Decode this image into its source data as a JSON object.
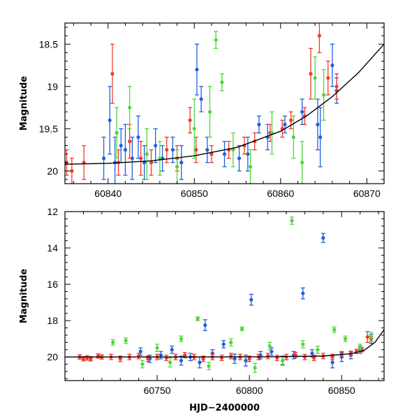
{
  "colors": {
    "blue": "#1f5fe0",
    "red": "#ef3a2b",
    "green": "#4fd63a",
    "fit": "#000000"
  },
  "chart_data": [
    {
      "type": "scatter",
      "title": "",
      "xlabel": "",
      "ylabel": "Magnitude",
      "xlim": [
        60835,
        60872
      ],
      "ylim": [
        20.15,
        18.25
      ],
      "y_inverted": true,
      "xticks": [
        60840,
        60850,
        60860,
        60870
      ],
      "xtick_labels": [
        "60840",
        "60850",
        "60860",
        "60870"
      ],
      "yticks": [
        18.5,
        19,
        19.5,
        20
      ],
      "ytick_labels": [
        "18.5",
        "19",
        "19.5",
        "20"
      ],
      "grid": false,
      "legend": false,
      "fit_curve": {
        "x": [
          60835,
          60840,
          60845,
          60850,
          60855,
          60860,
          60863,
          60866,
          60869,
          60872
        ],
        "y": [
          19.92,
          19.91,
          19.88,
          19.82,
          19.72,
          19.53,
          19.35,
          19.12,
          18.84,
          18.5
        ]
      },
      "series": [
        {
          "color": "blue",
          "points": [
            {
              "x": 60839.5,
              "y": 19.85,
              "err": 0.25
            },
            {
              "x": 60840.2,
              "y": 19.4,
              "err": 0.4
            },
            {
              "x": 60840.8,
              "y": 19.9,
              "err": 0.3
            },
            {
              "x": 60841.5,
              "y": 19.7,
              "err": 0.2
            },
            {
              "x": 60842.0,
              "y": 19.75,
              "err": 0.3
            },
            {
              "x": 60842.8,
              "y": 19.85,
              "err": 0.25
            },
            {
              "x": 60843.5,
              "y": 19.6,
              "err": 0.25
            },
            {
              "x": 60844.2,
              "y": 19.9,
              "err": 0.2
            },
            {
              "x": 60845.5,
              "y": 19.7,
              "err": 0.2
            },
            {
              "x": 60846.3,
              "y": 19.85,
              "err": 0.15
            },
            {
              "x": 60847.5,
              "y": 19.75,
              "err": 0.15
            },
            {
              "x": 60848.5,
              "y": 19.9,
              "err": 0.2
            },
            {
              "x": 60850.3,
              "y": 18.8,
              "err": 0.3
            },
            {
              "x": 60850.8,
              "y": 19.15,
              "err": 0.15
            },
            {
              "x": 60851.5,
              "y": 19.75,
              "err": 0.15
            },
            {
              "x": 60853.5,
              "y": 19.8,
              "err": 0.15
            },
            {
              "x": 60855.2,
              "y": 19.85,
              "err": 0.15
            },
            {
              "x": 60856.2,
              "y": 19.8,
              "err": 0.2
            },
            {
              "x": 60857.5,
              "y": 19.45,
              "err": 0.1
            },
            {
              "x": 60858.5,
              "y": 19.6,
              "err": 0.15
            },
            {
              "x": 60860.5,
              "y": 19.45,
              "err": 0.1
            },
            {
              "x": 60862.5,
              "y": 19.3,
              "err": 0.15
            },
            {
              "x": 60864.3,
              "y": 19.45,
              "err": 0.3
            },
            {
              "x": 60864.6,
              "y": 19.6,
              "err": 0.35
            },
            {
              "x": 60866.0,
              "y": 18.75,
              "err": 0.25
            },
            {
              "x": 60866.5,
              "y": 19.05,
              "err": 0.15
            }
          ]
        },
        {
          "color": "red",
          "points": [
            {
              "x": 60835.2,
              "y": 19.9,
              "err": 0.15
            },
            {
              "x": 60835.8,
              "y": 20.0,
              "err": 0.15
            },
            {
              "x": 60837.2,
              "y": 19.9,
              "err": 0.2
            },
            {
              "x": 60840.5,
              "y": 18.85,
              "err": 0.35
            },
            {
              "x": 60841.2,
              "y": 19.9,
              "err": 0.15
            },
            {
              "x": 60842.5,
              "y": 19.65,
              "err": 0.2
            },
            {
              "x": 60843.8,
              "y": 19.85,
              "err": 0.2
            },
            {
              "x": 60845.0,
              "y": 19.9,
              "err": 0.15
            },
            {
              "x": 60846.8,
              "y": 19.75,
              "err": 0.15
            },
            {
              "x": 60848.0,
              "y": 19.85,
              "err": 0.15
            },
            {
              "x": 60849.5,
              "y": 19.4,
              "err": 0.15
            },
            {
              "x": 60850.2,
              "y": 19.75,
              "err": 0.15
            },
            {
              "x": 60852.0,
              "y": 19.8,
              "err": 0.1
            },
            {
              "x": 60854.0,
              "y": 19.75,
              "err": 0.1
            },
            {
              "x": 60855.8,
              "y": 19.7,
              "err": 0.1
            },
            {
              "x": 60857.0,
              "y": 19.65,
              "err": 0.1
            },
            {
              "x": 60858.8,
              "y": 19.55,
              "err": 0.1
            },
            {
              "x": 60860.2,
              "y": 19.5,
              "err": 0.1
            },
            {
              "x": 60861.2,
              "y": 19.4,
              "err": 0.1
            },
            {
              "x": 60862.8,
              "y": 19.35,
              "err": 0.1
            },
            {
              "x": 60863.5,
              "y": 18.85,
              "err": 0.3
            },
            {
              "x": 60864.5,
              "y": 18.4,
              "err": 0.2
            },
            {
              "x": 60865.5,
              "y": 18.9,
              "err": 0.2
            },
            {
              "x": 60866.5,
              "y": 19.0,
              "err": 0.15
            }
          ]
        },
        {
          "color": "green",
          "points": [
            {
              "x": 60841.0,
              "y": 19.55,
              "err": 0.3
            },
            {
              "x": 60842.5,
              "y": 19.25,
              "err": 0.25
            },
            {
              "x": 60844.5,
              "y": 19.8,
              "err": 0.3
            },
            {
              "x": 60846.0,
              "y": 19.85,
              "err": 0.2
            },
            {
              "x": 60848.0,
              "y": 19.95,
              "err": 0.2
            },
            {
              "x": 60850.0,
              "y": 19.5,
              "err": 0.35
            },
            {
              "x": 60851.8,
              "y": 19.3,
              "err": 0.3
            },
            {
              "x": 60852.5,
              "y": 18.45,
              "err": 0.1
            },
            {
              "x": 60853.2,
              "y": 18.95,
              "err": 0.1
            },
            {
              "x": 60854.5,
              "y": 19.75,
              "err": 0.2
            },
            {
              "x": 60856.5,
              "y": 19.95,
              "err": 0.2
            },
            {
              "x": 60859.0,
              "y": 19.55,
              "err": 0.25
            },
            {
              "x": 60861.5,
              "y": 19.6,
              "err": 0.25
            },
            {
              "x": 60862.5,
              "y": 19.9,
              "err": 0.25
            },
            {
              "x": 60864.0,
              "y": 18.9,
              "err": 0.25
            },
            {
              "x": 60865.0,
              "y": 19.1,
              "err": 0.3
            }
          ]
        }
      ]
    },
    {
      "type": "scatter",
      "title": "",
      "xlabel": "HJD−2400000",
      "ylabel": "Magnitude",
      "xlim": [
        60700,
        60873
      ],
      "ylim": [
        21.3,
        12.0
      ],
      "y_inverted": true,
      "xticks": [
        60750,
        60800,
        60850
      ],
      "xtick_labels": [
        "60750",
        "60800",
        "60850"
      ],
      "yticks": [
        12,
        14,
        16,
        18,
        20
      ],
      "ytick_labels": [
        "12",
        "14",
        "16",
        "18",
        "20"
      ],
      "grid": false,
      "legend": false,
      "fit_curve": {
        "x": [
          60700,
          60760,
          60810,
          60840,
          60855,
          60862,
          60868,
          60873
        ],
        "y": [
          20.0,
          20.0,
          19.99,
          19.95,
          19.82,
          19.65,
          19.2,
          18.5
        ]
      },
      "series": [
        {
          "color": "blue",
          "points": [
            {
              "x": 60741,
              "y": 19.7,
              "err": 0.2
            },
            {
              "x": 60746,
              "y": 20.1,
              "err": 0.2
            },
            {
              "x": 60752,
              "y": 19.9,
              "err": 0.2
            },
            {
              "x": 60758,
              "y": 19.6,
              "err": 0.2
            },
            {
              "x": 60763,
              "y": 20.2,
              "err": 0.25
            },
            {
              "x": 60768,
              "y": 20.0,
              "err": 0.2
            },
            {
              "x": 60773,
              "y": 20.3,
              "err": 0.3
            },
            {
              "x": 60776,
              "y": 18.25,
              "err": 0.3
            },
            {
              "x": 60780,
              "y": 19.8,
              "err": 0.2
            },
            {
              "x": 60786,
              "y": 19.3,
              "err": 0.2
            },
            {
              "x": 60792,
              "y": 20.1,
              "err": 0.25
            },
            {
              "x": 60798,
              "y": 20.2,
              "err": 0.3
            },
            {
              "x": 60801,
              "y": 16.85,
              "err": 0.3
            },
            {
              "x": 60806,
              "y": 19.9,
              "err": 0.2
            },
            {
              "x": 60812,
              "y": 19.7,
              "err": 0.2
            },
            {
              "x": 60818,
              "y": 20.2,
              "err": 0.25
            },
            {
              "x": 60824,
              "y": 19.9,
              "err": 0.2
            },
            {
              "x": 60829,
              "y": 16.5,
              "err": 0.3
            },
            {
              "x": 60834,
              "y": 19.8,
              "err": 0.2
            },
            {
              "x": 60840,
              "y": 13.45,
              "err": 0.25
            },
            {
              "x": 60845,
              "y": 20.3,
              "err": 0.3
            },
            {
              "x": 60850,
              "y": 20.0,
              "err": 0.25
            },
            {
              "x": 60855,
              "y": 19.9,
              "err": 0.2
            },
            {
              "x": 60860,
              "y": 19.6,
              "err": 0.2
            },
            {
              "x": 60866,
              "y": 19.0,
              "err": 0.25
            }
          ]
        },
        {
          "color": "red",
          "points": [
            {
              "x": 60708,
              "y": 20.0,
              "err": 0.12
            },
            {
              "x": 60710,
              "y": 20.1,
              "err": 0.12
            },
            {
              "x": 60712,
              "y": 20.05,
              "err": 0.12
            },
            {
              "x": 60714,
              "y": 20.1,
              "err": 0.12
            },
            {
              "x": 60718,
              "y": 19.95,
              "err": 0.12
            },
            {
              "x": 60720,
              "y": 20.0,
              "err": 0.12
            },
            {
              "x": 60725,
              "y": 20.0,
              "err": 0.15
            },
            {
              "x": 60730,
              "y": 20.1,
              "err": 0.15
            },
            {
              "x": 60735,
              "y": 20.0,
              "err": 0.15
            },
            {
              "x": 60740,
              "y": 19.95,
              "err": 0.15
            },
            {
              "x": 60745,
              "y": 20.1,
              "err": 0.15
            },
            {
              "x": 60750,
              "y": 20.0,
              "err": 0.15
            },
            {
              "x": 60755,
              "y": 20.05,
              "err": 0.15
            },
            {
              "x": 60760,
              "y": 20.0,
              "err": 0.15
            },
            {
              "x": 60765,
              "y": 19.9,
              "err": 0.15
            },
            {
              "x": 60770,
              "y": 20.0,
              "err": 0.15
            },
            {
              "x": 60775,
              "y": 20.1,
              "err": 0.15
            },
            {
              "x": 60780,
              "y": 20.0,
              "err": 0.15
            },
            {
              "x": 60785,
              "y": 20.05,
              "err": 0.15
            },
            {
              "x": 60790,
              "y": 19.95,
              "err": 0.15
            },
            {
              "x": 60795,
              "y": 20.0,
              "err": 0.15
            },
            {
              "x": 60800,
              "y": 20.1,
              "err": 0.15
            },
            {
              "x": 60805,
              "y": 20.0,
              "err": 0.15
            },
            {
              "x": 60810,
              "y": 19.95,
              "err": 0.15
            },
            {
              "x": 60815,
              "y": 20.05,
              "err": 0.15
            },
            {
              "x": 60820,
              "y": 20.0,
              "err": 0.15
            },
            {
              "x": 60825,
              "y": 19.9,
              "err": 0.15
            },
            {
              "x": 60830,
              "y": 20.0,
              "err": 0.15
            },
            {
              "x": 60835,
              "y": 20.05,
              "err": 0.15
            },
            {
              "x": 60840,
              "y": 19.95,
              "err": 0.15
            },
            {
              "x": 60845,
              "y": 20.0,
              "err": 0.15
            },
            {
              "x": 60850,
              "y": 19.85,
              "err": 0.15
            },
            {
              "x": 60855,
              "y": 19.8,
              "err": 0.12
            },
            {
              "x": 60858,
              "y": 19.7,
              "err": 0.12
            },
            {
              "x": 60861,
              "y": 19.6,
              "err": 0.12
            },
            {
              "x": 60864,
              "y": 18.9,
              "err": 0.3
            },
            {
              "x": 60866,
              "y": 19.0,
              "err": 0.15
            }
          ]
        },
        {
          "color": "green",
          "points": [
            {
              "x": 60726,
              "y": 19.2,
              "err": 0.15
            },
            {
              "x": 60733,
              "y": 19.1,
              "err": 0.15
            },
            {
              "x": 60742,
              "y": 20.4,
              "err": 0.2
            },
            {
              "x": 60750,
              "y": 19.5,
              "err": 0.2
            },
            {
              "x": 60757,
              "y": 20.3,
              "err": 0.25
            },
            {
              "x": 60763,
              "y": 19.0,
              "err": 0.15
            },
            {
              "x": 60772,
              "y": 17.9,
              "err": 0.1
            },
            {
              "x": 60778,
              "y": 20.5,
              "err": 0.2
            },
            {
              "x": 60790,
              "y": 19.2,
              "err": 0.2
            },
            {
              "x": 60796,
              "y": 18.45,
              "err": 0.1
            },
            {
              "x": 60803,
              "y": 20.6,
              "err": 0.25
            },
            {
              "x": 60811,
              "y": 19.4,
              "err": 0.2
            },
            {
              "x": 60818,
              "y": 20.2,
              "err": 0.2
            },
            {
              "x": 60823,
              "y": 12.5,
              "err": 0.2
            },
            {
              "x": 60829,
              "y": 19.3,
              "err": 0.2
            },
            {
              "x": 60837,
              "y": 19.6,
              "err": 0.2
            },
            {
              "x": 60846,
              "y": 18.5,
              "err": 0.15
            },
            {
              "x": 60852,
              "y": 19.0,
              "err": 0.15
            },
            {
              "x": 60860,
              "y": 19.5,
              "err": 0.2
            },
            {
              "x": 60866,
              "y": 18.9,
              "err": 0.25
            }
          ]
        }
      ]
    }
  ]
}
